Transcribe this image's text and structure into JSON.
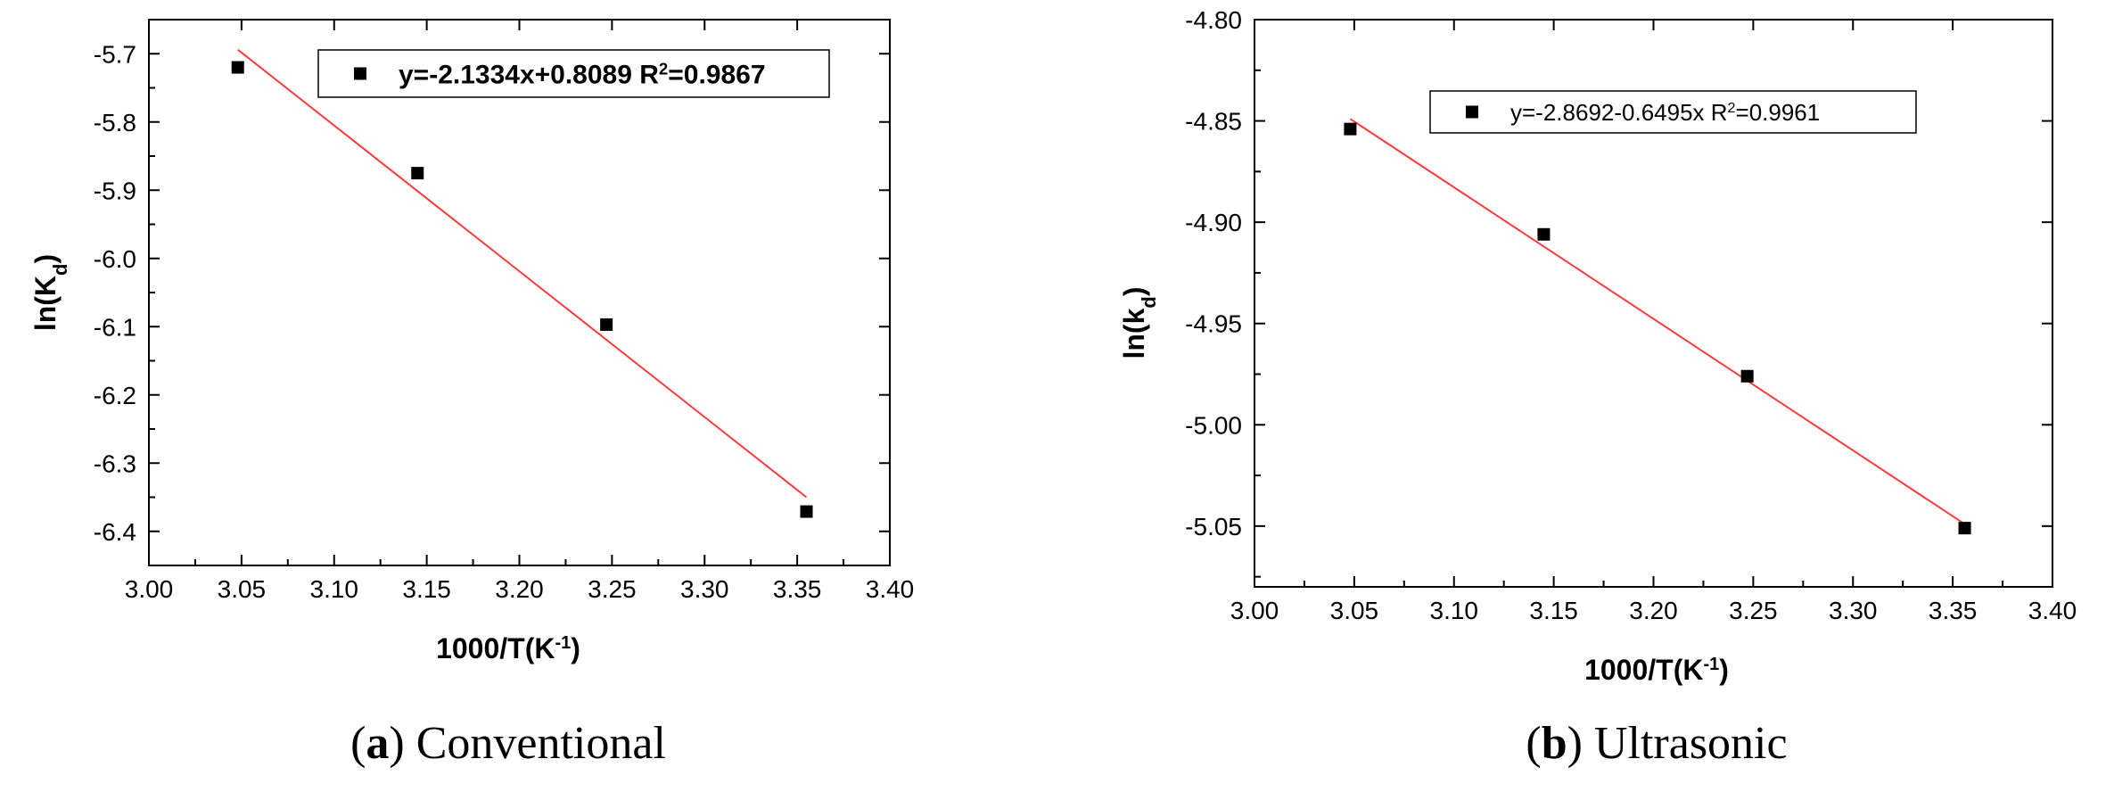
{
  "chart_data": [
    {
      "type": "scatter",
      "caption": {
        "letter": "a",
        "text": "Conventional"
      },
      "xlabel": {
        "main": "1000/T(K",
        "sup": "-1",
        "end": ")"
      },
      "ylabel": {
        "main": "ln(K",
        "sub": "d",
        "end": ")"
      },
      "xlim": [
        3.0,
        3.4
      ],
      "ylim": [
        -6.45,
        -5.65
      ],
      "x_ticks": [
        "3.00",
        "3.05",
        "3.10",
        "3.15",
        "3.20",
        "3.25",
        "3.30",
        "3.35",
        "3.40"
      ],
      "y_ticks": [
        "-5.7",
        "-5.8",
        "-5.9",
        "-6.0",
        "-6.1",
        "-6.2",
        "-6.3",
        "-6.4"
      ],
      "series": [
        {
          "marker": "square",
          "color": "#000000",
          "points": [
            [
              3.048,
              -5.72
            ],
            [
              3.145,
              -5.875
            ],
            [
              3.247,
              -6.097
            ],
            [
              3.355,
              -6.371
            ]
          ]
        }
      ],
      "fit": {
        "color": "#ff3b3b",
        "x": [
          3.048,
          3.355
        ],
        "y": [
          -5.694,
          -6.35
        ]
      },
      "legend": {
        "pre": "y=-2.1334x+0.8089 R",
        "sup": "2",
        "post": "=0.9867",
        "position": "top-right",
        "bold": true
      }
    },
    {
      "type": "scatter",
      "caption": {
        "letter": "b",
        "text": "Ultrasonic"
      },
      "xlabel": {
        "main": "1000/T(K",
        "sup": "-1",
        "end": ")"
      },
      "ylabel": {
        "main": "ln(k",
        "sub": "d",
        "end": ")"
      },
      "xlim": [
        3.0,
        3.4
      ],
      "ylim": [
        -5.08,
        -4.8
      ],
      "x_ticks": [
        "3.00",
        "3.05",
        "3.10",
        "3.15",
        "3.20",
        "3.25",
        "3.30",
        "3.35",
        "3.40"
      ],
      "y_ticks": [
        "-4.80",
        "-4.85",
        "-4.90",
        "-4.95",
        "-5.00",
        "-5.05"
      ],
      "series": [
        {
          "marker": "square",
          "color": "#000000",
          "points": [
            [
              3.048,
              -4.854
            ],
            [
              3.145,
              -4.906
            ],
            [
              3.247,
              -4.976
            ],
            [
              3.356,
              -5.051
            ]
          ]
        }
      ],
      "fit": {
        "color": "#ff3b3b",
        "x": [
          3.048,
          3.356
        ],
        "y": [
          -4.849,
          -5.049
        ]
      },
      "legend": {
        "pre": "y=-2.8692-0.6495x R",
        "sup": "2",
        "post": "=0.9961",
        "position": "top-right",
        "bold": false
      }
    }
  ]
}
